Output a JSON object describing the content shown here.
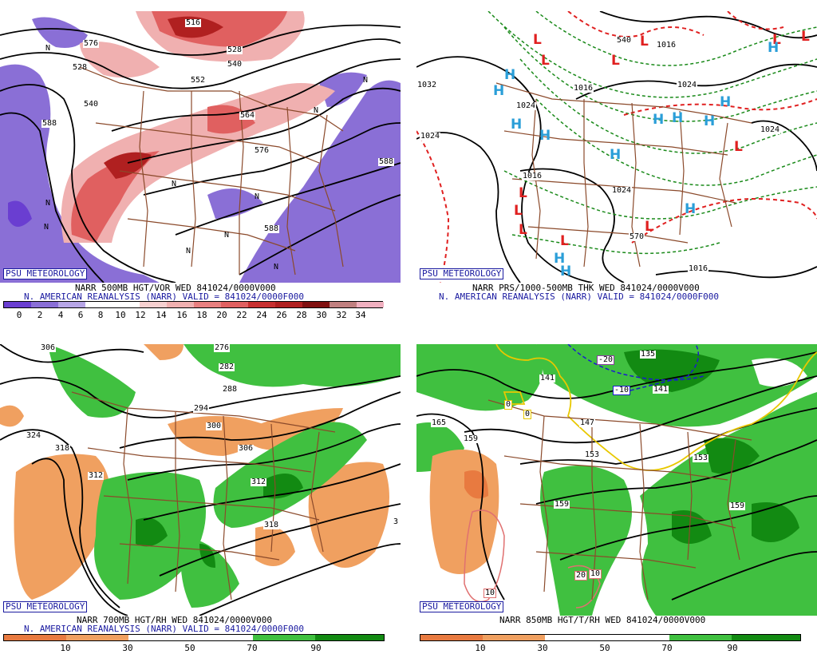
{
  "colors": {
    "purple": "#8a6fd6",
    "purple_dark": "#6a3ed1",
    "red_light": "#f0b0b0",
    "red": "#e06060",
    "red_dark": "#b02020",
    "orange": "#f0a060",
    "orange_dark": "#e87a40",
    "green": "#40c040",
    "green_dark": "#128a12",
    "state_border": "#8b4a2b",
    "contour": "#000000",
    "low_red": "#e02020",
    "high_blue": "#2a9ed8",
    "thickness_green": "#1a8a1a"
  },
  "panels": [
    {
      "id": "500mb",
      "badge": "PSU METEOROLOGY",
      "caption_line1": "NARR 500MB HGT/VOR WED 841024/0000V000",
      "caption_line2": "N. AMERICAN REANALYSIS (NARR) VALID = 841024/0000F000",
      "scale_ticks": [
        "0",
        "2",
        "4",
        "6",
        "8",
        "10",
        "12",
        "14",
        "16",
        "18",
        "20",
        "22",
        "24",
        "26",
        "28",
        "30",
        "32",
        "34"
      ],
      "contour_labels": [
        "540",
        "552",
        "564",
        "576",
        "588",
        "588",
        "516",
        "528",
        "528",
        "540",
        "576",
        "588"
      ],
      "n_labels": [
        "N",
        "N",
        "N",
        "N",
        "N",
        "N",
        "N",
        "N",
        "N",
        "N"
      ]
    },
    {
      "id": "prs",
      "badge": "PSU METEOROLOGY",
      "caption_line1": "NARR PRS/1000-500MB THK WED 841024/0000V000",
      "caption_line2": "N. AMERICAN REANALYSIS (NARR) VALID = 841024/0000F000",
      "contour_labels": [
        "1032",
        "1024",
        "1024",
        "1016",
        "1024",
        "1024",
        "1016",
        "1016",
        "1016",
        "1024",
        "540",
        "570"
      ],
      "lows": [
        "L",
        "L",
        "L",
        "L",
        "L",
        "L",
        "L",
        "L",
        "L",
        "L",
        "L",
        "L"
      ],
      "highs": [
        "H",
        "H",
        "H",
        "H",
        "H",
        "H",
        "H",
        "H",
        "H",
        "H",
        "H",
        "H",
        "H"
      ]
    },
    {
      "id": "700mb",
      "badge": "PSU METEOROLOGY",
      "caption_line1": "NARR 700MB HGT/RH WED 841024/0000V000",
      "caption_line2": "N. AMERICAN REANALYSIS (NARR) VALID = 841024/0000F000",
      "scale_ticks": [
        "10",
        "30",
        "50",
        "70",
        "90"
      ],
      "contour_labels": [
        "306",
        "324",
        "318",
        "312",
        "300",
        "294",
        "282",
        "288",
        "276",
        "306",
        "312",
        "318",
        "3"
      ]
    },
    {
      "id": "850mb",
      "badge": "PSU METEOROLOGY",
      "caption_line1": "NARR 850MB HGT/T/RH WED 841024/0000V000",
      "caption_line2": "",
      "scale_ticks": [
        "10",
        "30",
        "50",
        "70",
        "90"
      ],
      "contour_labels": [
        "165",
        "159",
        "147",
        "153",
        "141",
        "135",
        "159",
        "153",
        "141",
        "159"
      ],
      "temp_labels": [
        "-20",
        "-10",
        "0",
        "0",
        "10",
        "20",
        "10"
      ]
    }
  ]
}
